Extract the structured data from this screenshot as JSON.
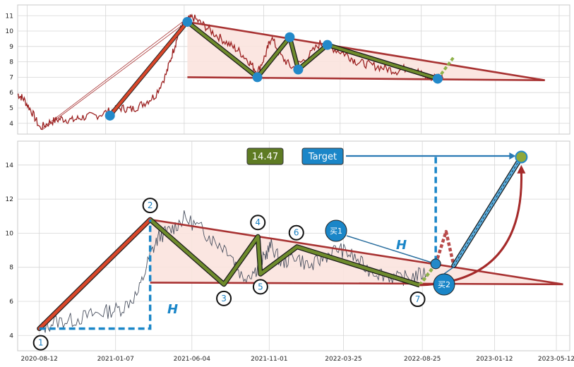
{
  "chart_data": [
    {
      "type": "line",
      "panel": "top",
      "ylim": [
        3.3,
        11.7
      ],
      "y_ticks": [
        "4",
        "5",
        "6",
        "7",
        "8",
        "9",
        "10",
        "11"
      ],
      "x_range": [
        "2020-07-25",
        "2023-06-01"
      ],
      "grid": true,
      "series": [
        {
          "values_x": [
            "2020-07-25",
            "2020-08-05",
            "2020-08-20",
            "2020-09-05",
            "2020-09-25",
            "2020-10-15",
            "2020-11-05",
            "2020-11-25",
            "2020-12-20",
            "2021-01-15",
            "2021-02-05",
            "2021-02-25",
            "2021-03-20",
            "2021-04-10",
            "2021-05-01",
            "2021-05-15",
            "2021-05-25",
            "2021-06-05",
            "2021-06-20",
            "2021-07-10",
            "2021-08-01",
            "2021-08-25",
            "2021-09-15",
            "2021-10-05",
            "2021-10-20",
            "2021-11-05",
            "2021-11-15",
            "2021-12-05",
            "2021-12-25",
            "2022-01-20",
            "2022-02-15",
            "2022-03-10",
            "2022-04-05",
            "2022-04-25",
            "2022-05-20",
            "2022-06-15",
            "2022-07-10",
            "2022-08-05",
            "2022-08-25",
            "2022-09-10",
            "2022-09-25",
            "2022-10-05"
          ],
          "values_y": [
            5.9,
            5.6,
            4.8,
            3.7,
            4.1,
            4.3,
            4.2,
            4.4,
            4.5,
            4.8,
            5.0,
            4.9,
            5.3,
            5.8,
            7.2,
            8.8,
            9.9,
            10.6,
            10.9,
            10.4,
            9.8,
            9.2,
            8.7,
            8.0,
            7.3,
            8.5,
            9.6,
            8.3,
            7.6,
            8.2,
            9.2,
            8.9,
            8.5,
            8.0,
            7.8,
            7.6,
            7.4,
            7.7,
            7.2,
            6.95,
            7.1,
            7.0
          ]
        }
      ],
      "overlay": {
        "zigzag_points": [
          [
            "2021-06-10",
            10.6
          ],
          [
            "2021-10-20",
            7.0
          ],
          [
            "2021-12-20",
            9.6
          ],
          [
            "2022-01-05",
            7.5
          ],
          [
            "2022-03-01",
            9.1
          ],
          [
            "2022-09-25",
            6.9
          ]
        ],
        "impulse": [
          [
            "2021-01-15",
            4.5
          ],
          [
            "2021-06-10",
            10.6
          ]
        ],
        "triangle_upper": [
          [
            "2021-06-10",
            10.6
          ],
          [
            "2023-04-15",
            6.8
          ]
        ],
        "triangle_lower": [
          [
            "2021-06-10",
            7.0
          ],
          [
            "2023-04-15",
            6.8
          ]
        ],
        "breakout_dashed": [
          [
            "2022-09-25",
            6.9
          ],
          [
            "2022-10-25",
            8.3
          ]
        ],
        "thin_guides": [
          [
            [
              "2020-09-10",
              3.6
            ],
            [
              "2021-06-05",
              10.5
            ]
          ],
          [
            [
              "2020-09-10",
              3.7
            ],
            [
              "2021-06-05",
              10.7
            ]
          ]
        ]
      }
    },
    {
      "type": "line",
      "panel": "bottom",
      "ylim": [
        3.1,
        15.4
      ],
      "y_ticks": [
        "4",
        "6",
        "8",
        "10",
        "12",
        "14"
      ],
      "x_tick_labels": [
        "2020-08-12",
        "2021-01-07",
        "2021-06-04",
        "2021-11-01",
        "2022-03-25",
        "2022-08-25",
        "2023-01-12",
        "2023-05-12"
      ],
      "x_range": [
        "2020-07-01",
        "2023-06-07"
      ],
      "grid": true,
      "series": [
        {
          "values_x": [
            "2020-08-12",
            "2020-09-10",
            "2020-10-15",
            "2020-11-20",
            "2020-12-20",
            "2021-01-20",
            "2021-02-20",
            "2021-03-15",
            "2021-04-01",
            "2021-04-25",
            "2021-05-20",
            "2021-06-20",
            "2021-07-15",
            "2021-08-15",
            "2021-09-10",
            "2021-10-05",
            "2021-10-20",
            "2021-11-05",
            "2021-11-25",
            "2021-12-20",
            "2022-01-20",
            "2022-02-15",
            "2022-03-15",
            "2022-04-10",
            "2022-05-10",
            "2022-06-10",
            "2022-07-10",
            "2022-08-10",
            "2022-09-05"
          ],
          "values_y": [
            4.3,
            4.8,
            4.9,
            5.2,
            5.4,
            5.6,
            6.5,
            8.7,
            9.8,
            10.2,
            10.9,
            10.3,
            9.6,
            9.0,
            7.4,
            7.8,
            8.5,
            9.3,
            8.2,
            8.7,
            8.0,
            8.6,
            9.1,
            8.7,
            7.9,
            7.6,
            7.3,
            7.5,
            7.7
          ]
        }
      ],
      "overlay": {
        "wave_points": [
          {
            "label": "1",
            "x": "2020-08-12",
            "y": 4.4
          },
          {
            "label": "2",
            "x": "2021-03-15",
            "y": 10.8
          },
          {
            "label": "3",
            "x": "2021-08-05",
            "y": 7.0
          },
          {
            "label": "4",
            "x": "2021-10-10",
            "y": 9.8
          },
          {
            "label": "5",
            "x": "2021-10-15",
            "y": 7.6
          },
          {
            "label": "6",
            "x": "2021-12-25",
            "y": 9.2
          },
          {
            "label": "7",
            "x": "2022-08-20",
            "y": 6.95
          }
        ],
        "triangle_upper": [
          [
            "2021-03-15",
            10.8
          ],
          [
            "2023-05-25",
            7.0
          ]
        ],
        "triangle_lower": [
          [
            "2021-03-15",
            7.1
          ],
          [
            "2023-05-25",
            7.0
          ]
        ],
        "measure_H": {
          "base_y": 4.4,
          "top_y": 10.8,
          "label": "H"
        },
        "measure_H2": {
          "x": "2022-09-20",
          "from": 8.3,
          "to": 14.5,
          "label": "H"
        },
        "projection": [
          [
            "2022-10-25",
            8.1
          ],
          [
            "2023-03-05",
            14.47
          ]
        ],
        "target_value": "14.47",
        "target_label": "Target",
        "buy_labels": [
          "买1",
          "买2"
        ],
        "buy_points": [
          {
            "label": "买1",
            "x": "2022-05-15",
            "y": 10.0
          },
          {
            "label": "买2",
            "x": "2022-11-05",
            "y": 6.9
          }
        ],
        "pullback": [
          [
            "2022-09-20",
            8.2
          ],
          [
            "2022-10-10",
            10.1
          ],
          [
            "2022-10-25",
            8.1
          ]
        ],
        "breakout_dashed": [
          [
            "2022-08-20",
            6.95
          ],
          [
            "2022-09-20",
            8.2
          ]
        ],
        "curve_arrow": [
          [
            "2022-08-20",
            6.95
          ],
          [
            "2023-03-05",
            14.0
          ]
        ]
      }
    }
  ],
  "colors": {
    "price_line_top": "#9b2020",
    "price_line_bottom": "#4a5160",
    "triangle_fill": "#fbe3de",
    "triangle_edge": "#a83232",
    "zigzag": "#6e8b2c",
    "impulse_red": "#d9472a",
    "marker_blue": "#2389c9",
    "dash_blue": "#1a86c8",
    "value_badge": "#5e7b23",
    "target_badge": "#1a86c8"
  }
}
